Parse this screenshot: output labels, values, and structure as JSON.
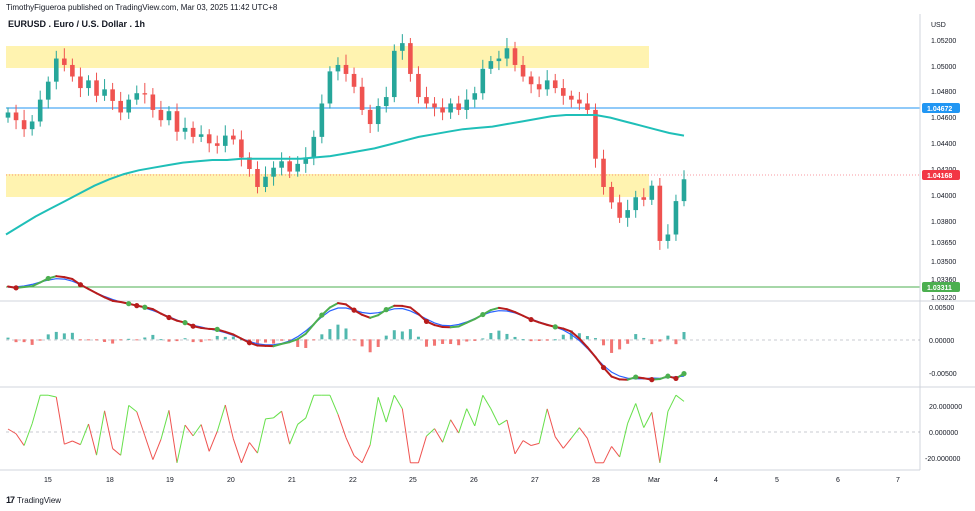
{
  "header": {
    "credit": "TimothyFigueroa published on TradingView.com, Mar 03, 2025 11:42 UTC+8",
    "symbol": "EURUSD . Euro / U.S. Dollar . 1h"
  },
  "price_axis": {
    "currency": "USD",
    "ticks": [
      "1.05200",
      "1.05000",
      "1.04800",
      "1.04600",
      "1.04400",
      "1.04200",
      "1.04000",
      "1.03800",
      "1.03650",
      "1.03500",
      "1.03360",
      "1.03220"
    ]
  },
  "price_badges": {
    "resistance": "1.04672",
    "current": "1.04168",
    "support": "1.03311"
  },
  "osc1_axis": {
    "ticks": [
      "0.00500",
      "0.00000",
      "-0.00500"
    ]
  },
  "osc2_axis": {
    "ticks": [
      "20.000000",
      "0.000000",
      "-20.000000"
    ]
  },
  "time_axis": {
    "ticks": [
      "15",
      "18",
      "19",
      "20",
      "21",
      "22",
      "25",
      "26",
      "27",
      "28",
      "Mar",
      "4",
      "5",
      "6",
      "7"
    ]
  },
  "footer": {
    "brand": "TradingView",
    "logo": "17"
  },
  "colors": {
    "up": "#26a69a",
    "down": "#ef5350",
    "ma": "#1fbfb8",
    "zone": "#fff3b0",
    "green": "#4caf50",
    "red": "#b71c1c",
    "blue": "#2962ff",
    "badge_blue": "#2196f3",
    "badge_red": "#f23645",
    "badge_green": "#4caf50"
  },
  "chart_data": {
    "type": "candlestick",
    "symbol": "EURUSD",
    "timeframe": "1h",
    "price_ylim": [
      1.0322,
      1.054
    ],
    "zones": [
      {
        "from_x": 0,
        "to_x": 105,
        "low": 1.05,
        "high": 1.0517
      },
      {
        "from_x": 0,
        "to_x": 105,
        "low": 1.04,
        "high": 1.0418
      }
    ],
    "lines": [
      {
        "name": "resistance",
        "price": 1.04672,
        "color": "#2196f3"
      },
      {
        "name": "current",
        "price": 1.04168,
        "color": "#f23645"
      },
      {
        "name": "support",
        "price": 1.03311,
        "color": "#4caf50"
      }
    ],
    "closes": [
      1.0468,
      1.0462,
      1.0455,
      1.0461,
      1.0478,
      1.0492,
      1.051,
      1.0505,
      1.0496,
      1.0487,
      1.0493,
      1.0481,
      1.0486,
      1.0477,
      1.0468,
      1.0478,
      1.0483,
      1.0482,
      1.047,
      1.0462,
      1.0469,
      1.0453,
      1.0456,
      1.0449,
      1.0451,
      1.0444,
      1.0442,
      1.045,
      1.0447,
      1.0433,
      1.0424,
      1.041,
      1.0418,
      1.0425,
      1.043,
      1.0422,
      1.0428,
      1.0433,
      1.0449,
      1.0475,
      1.05,
      1.0505,
      1.0498,
      1.0488,
      1.047,
      1.0459,
      1.0473,
      1.048,
      1.0516,
      1.0522,
      1.0498,
      1.048,
      1.0475,
      1.0472,
      1.0468,
      1.0475,
      1.047,
      1.0478,
      1.0483,
      1.0502,
      1.0508,
      1.051,
      1.0518,
      1.0505,
      1.0496,
      1.049,
      1.0486,
      1.0493,
      1.0487,
      1.0481,
      1.0478,
      1.0475,
      1.047,
      1.0432,
      1.041,
      1.0398,
      1.0386,
      1.0392,
      1.0402,
      1.04,
      1.0411,
      1.0368,
      1.0373,
      1.0399,
      1.0416
    ],
    "moving_average": [
      1.0373,
      1.038,
      1.0387,
      1.0393,
      1.0399,
      1.0405,
      1.0411,
      1.0416,
      1.042,
      1.0423,
      1.0425,
      1.0427,
      1.0429,
      1.043,
      1.0431,
      1.0431,
      1.0432,
      1.0432,
      1.0432,
      1.0432,
      1.0432,
      1.0433,
      1.0434,
      1.0436,
      1.0438,
      1.044,
      1.0443,
      1.0446,
      1.0449,
      1.0451,
      1.0453,
      1.0455,
      1.0456,
      1.0457,
      1.0459,
      1.0461,
      1.0463,
      1.0465,
      1.0466,
      1.0466,
      1.0466,
      1.0464,
      1.0461,
      1.0458,
      1.0455,
      1.0452,
      1.045
    ],
    "oscillator1": {
      "ylim": [
        -0.0075,
        0.006
      ]
    },
    "oscillator2": {
      "ylim": [
        -30,
        30
      ]
    }
  }
}
